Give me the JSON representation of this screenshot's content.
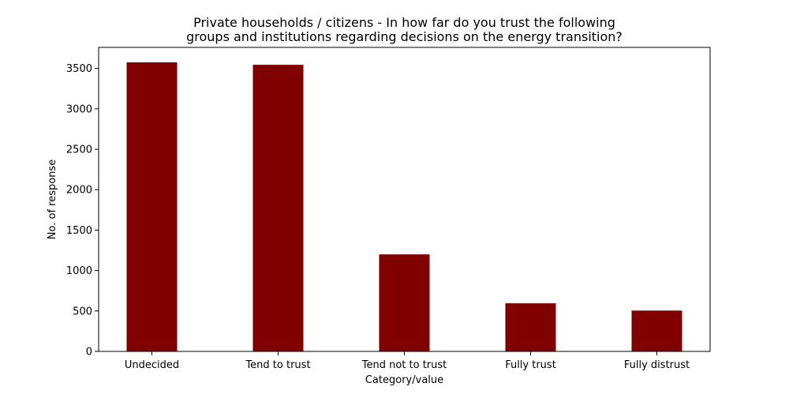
{
  "chart_data": {
    "type": "bar",
    "title_lines": [
      "Private households / citizens - In how far do you trust the following",
      "groups and institutions regarding decisions on the energy transition?"
    ],
    "xlabel": "Category/value",
    "ylabel": "No. of response",
    "categories": [
      "Undecided",
      "Tend to trust",
      "Tend not to trust",
      "Fully trust",
      "Fully distrust"
    ],
    "values": [
      3575,
      3545,
      1200,
      595,
      505
    ],
    "ylim": [
      0,
      3760
    ],
    "yticks": [
      0,
      500,
      1000,
      1500,
      2000,
      2500,
      3000,
      3500
    ],
    "bar_color": "#800000",
    "grid": false,
    "legend": "none"
  }
}
